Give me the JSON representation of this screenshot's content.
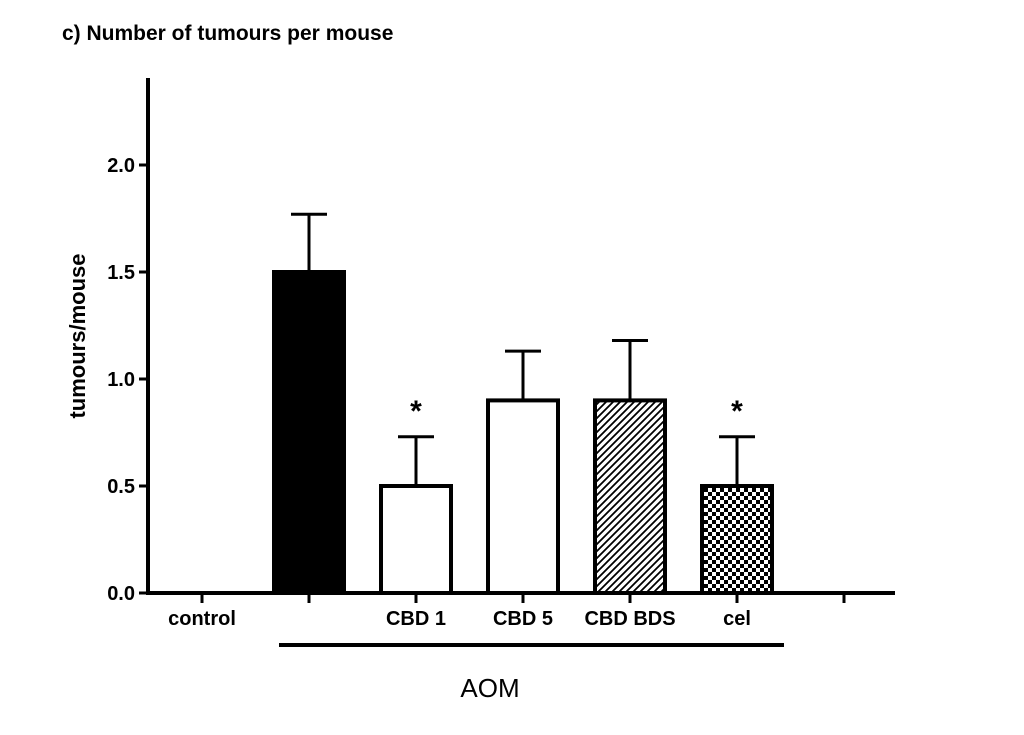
{
  "chart_data": {
    "type": "bar",
    "title": "c) Number of tumours per mouse",
    "ylabel": "tumours/mouse",
    "ylim": [
      0,
      2.4
    ],
    "yticks": [
      "0.0",
      "0.5",
      "1.0",
      "1.5",
      "2.0"
    ],
    "categories": [
      "control",
      "",
      "CBD 1",
      "CBD 5",
      "CBD BDS",
      "cel",
      ""
    ],
    "values": [
      0,
      1.5,
      0.5,
      0.9,
      0.9,
      0.5,
      null
    ],
    "errors": [
      0,
      0.27,
      0.23,
      0.23,
      0.28,
      0.23,
      null
    ],
    "significance": [
      "",
      "",
      "*",
      "",
      "",
      "*",
      ""
    ],
    "fills": [
      "none",
      "solid-black",
      "white",
      "white",
      "diagonal-hatch",
      "checkerboard",
      "none"
    ],
    "group_label": "AOM",
    "grid": false,
    "legend": "none"
  }
}
